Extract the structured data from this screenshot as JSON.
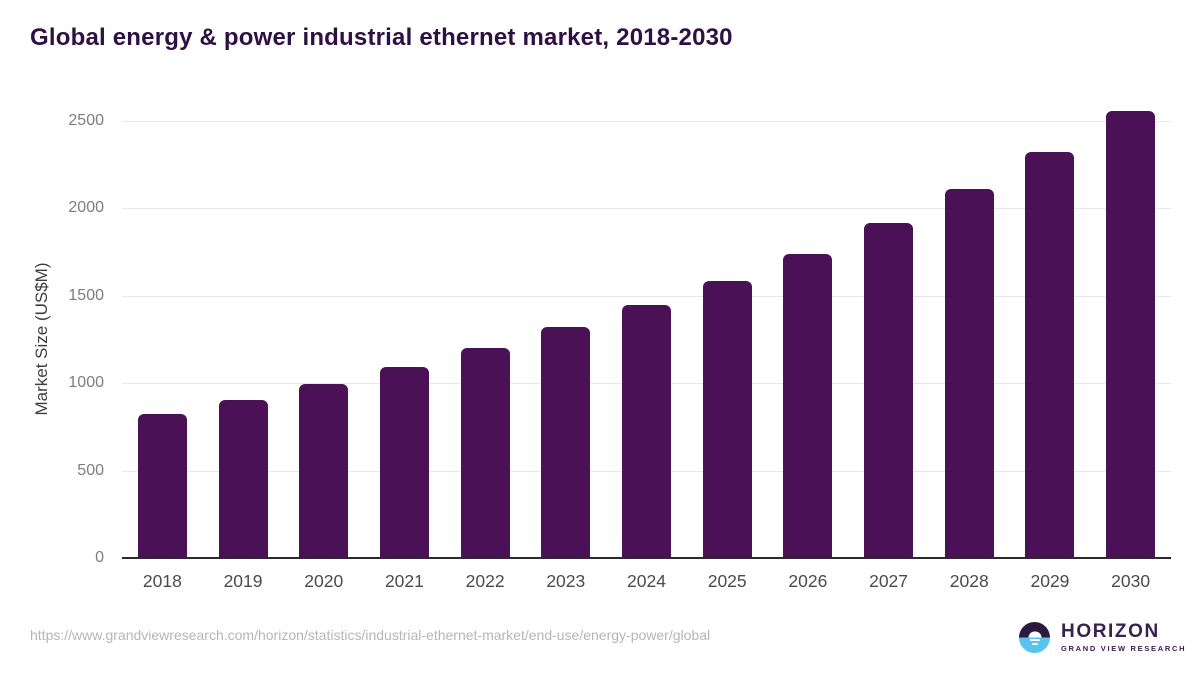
{
  "title": "Global energy & power industrial ethernet market, 2018-2030",
  "chart_data": {
    "type": "bar",
    "categories": [
      "2018",
      "2019",
      "2020",
      "2021",
      "2022",
      "2023",
      "2024",
      "2025",
      "2026",
      "2027",
      "2028",
      "2029",
      "2030"
    ],
    "values": [
      825,
      905,
      995,
      1090,
      1200,
      1320,
      1450,
      1585,
      1740,
      1915,
      2110,
      2320,
      2555
    ],
    "title": "Global energy & power industrial ethernet market, 2018-2030",
    "xlabel": "",
    "ylabel": "Market Size (US$M)",
    "ylim": [
      0,
      2500
    ],
    "yticks": [
      0,
      500,
      1000,
      1500,
      2000,
      2500
    ],
    "grid": true,
    "legend": "none",
    "bar_color": "#4a1157"
  },
  "footer": {
    "source_url": "https://www.grandviewresearch.com/horizon/statistics/industrial-ethernet-market/end-use/energy-power/global"
  },
  "logo": {
    "brand": "HORIZON",
    "subtitle": "GRAND VIEW RESEARCH"
  },
  "colors": {
    "accent_purple": "#4a1157",
    "title_purple": "#2e1043",
    "logo_purple": "#35224f",
    "logo_circle_top": "#2b1a3e",
    "logo_circle_bottom": "#5ac2ef",
    "gridline": "#e8e8e8",
    "axis_line": "#2b2b2b",
    "y_tick_text": "#7d7d7d",
    "x_tick_text": "#4b4b4b",
    "source_text": "#b6b6b6"
  }
}
